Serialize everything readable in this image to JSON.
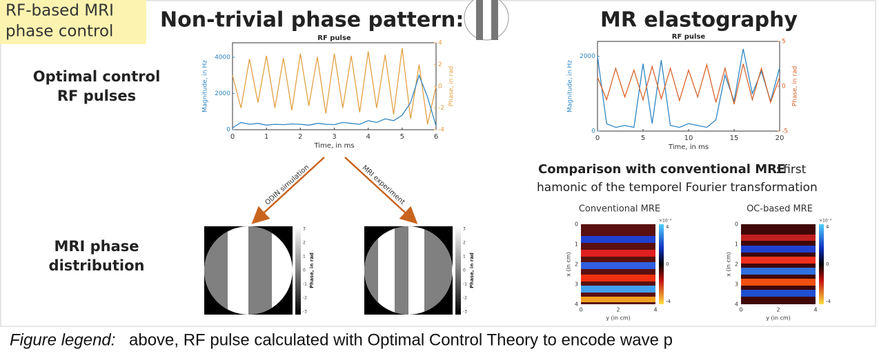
{
  "tag": [
    "RF-based MRI",
    "phase control"
  ],
  "title_left": "Non-trivial phase pattern:",
  "title_right": "MR elastography",
  "row_labels": {
    "rf": [
      "Optimal control",
      "RF pulses"
    ],
    "phase": [
      "MRI phase",
      "distribution"
    ]
  },
  "plots": [
    {
      "title": "RF pulse",
      "x_label": "Time, in ms",
      "y_label": "Magnitude, in Hz",
      "y2_label": "Phase, in rad",
      "xlim": [
        0,
        6
      ],
      "xticks": [
        0,
        1,
        2,
        3,
        4,
        5,
        6
      ],
      "ylim": [
        0,
        4800
      ],
      "yticks": [
        0,
        2000,
        4000
      ],
      "y2lim": [
        -4,
        4
      ],
      "y2ticks": [
        -4,
        -2,
        0,
        2,
        4
      ],
      "x": [
        0,
        0.25,
        0.5,
        0.75,
        1,
        1.25,
        1.5,
        1.75,
        2,
        2.25,
        2.5,
        2.75,
        3,
        3.25,
        3.5,
        3.75,
        4,
        4.25,
        4.5,
        4.75,
        5,
        5.25,
        5.5,
        5.75,
        6
      ],
      "series": [
        {
          "color": "#e3a043",
          "axis": "y2",
          "values": [
            1,
            -2,
            2.5,
            -1.5,
            2.8,
            -2,
            2.6,
            -2.2,
            3,
            -1.8,
            2.7,
            -2.5,
            3,
            -2,
            2.8,
            -2.4,
            3.2,
            -2,
            2.9,
            -2.6,
            3.5,
            -3,
            2,
            -3.5,
            0
          ]
        },
        {
          "color": "#2f86c4",
          "values": [
            100,
            400,
            300,
            350,
            250,
            300,
            280,
            320,
            300,
            250,
            350,
            300,
            280,
            400,
            350,
            300,
            500,
            400,
            600,
            500,
            800,
            1500,
            3000,
            1800,
            200
          ]
        }
      ]
    },
    {
      "title": "RF pulse",
      "x_label": "Time, in ms",
      "y_label": "Magnitude, in Hz",
      "y2_label": "Phase, in rad",
      "xlim": [
        0,
        20
      ],
      "xticks": [
        0,
        5,
        10,
        15,
        20
      ],
      "ylim": [
        0,
        2400
      ],
      "yticks": [
        0,
        2000
      ],
      "y2lim": [
        -5,
        5
      ],
      "y2ticks": [
        -5,
        0,
        5
      ],
      "x": [
        0,
        1,
        2,
        3,
        4,
        5,
        6,
        7,
        8,
        9,
        10,
        11,
        12,
        13,
        14,
        15,
        16,
        17,
        18,
        19,
        20
      ],
      "series": [
        {
          "color": "#2f86c4",
          "values": [
            2000,
            200,
            100,
            150,
            100,
            1800,
            200,
            1900,
            150,
            100,
            200,
            150,
            100,
            300,
            1500,
            800,
            2200,
            1000,
            1600,
            800,
            1700
          ]
        },
        {
          "color": "#d8642c",
          "axis": "y2",
          "values": [
            1,
            -1.5,
            2,
            -1.2,
            1.8,
            -1.5,
            2.2,
            -1.4,
            2,
            -1.6,
            1.8,
            -1.2,
            2.4,
            -1.8,
            2,
            -2,
            2.5,
            -1.5,
            2,
            -1.8,
            1
          ]
        }
      ]
    }
  ],
  "arrows": [
    "ODIN simulation",
    "MRI experiment"
  ],
  "phase_maps": {
    "colorbar_label": "Phase, in rad",
    "ticks": [
      3,
      2,
      1,
      0,
      -1,
      -2,
      -3
    ]
  },
  "comparison": {
    "lines": [
      "Comparison with conventional MRE",
      ": first",
      "hamonic of the temporel Fourier transformation"
    ],
    "maps": [
      "Conventional MRE",
      "OC-based MRE"
    ],
    "x_label": "y (in cm)",
    "y_label": "x (in cm)",
    "xticks": [
      0,
      2,
      4
    ],
    "yticks": [
      0,
      1,
      2,
      3,
      4
    ],
    "colorbar_ticks": [
      4,
      0,
      -4
    ],
    "colorbar_exponent": "×10⁻³"
  },
  "caption": {
    "lead": "Figure legend:",
    "text": "above, RF pulse calculated with Optimal Control Theory to encode wave p"
  }
}
